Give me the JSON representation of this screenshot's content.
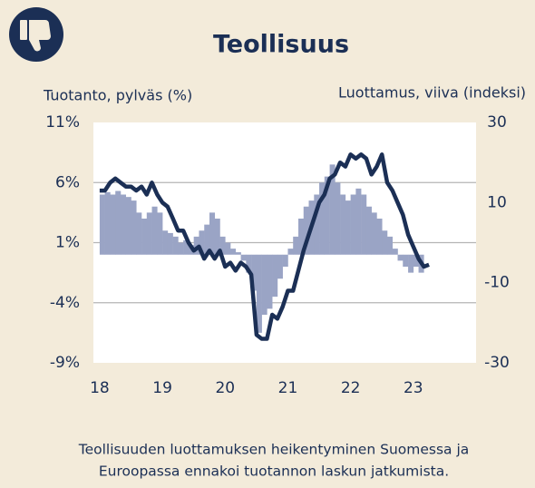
{
  "chart_data": {
    "type": "combo",
    "title": "Teollisuus",
    "y_label": "Tuotanto, pylväs (%)",
    "y2_label": "Luottamus, viiva (indeksi)",
    "caption": [
      "Teollisuuden luottamuksen heikentyminen Suomessa ja",
      "Euroopassa ennakoi tuotannon laskun jatkumista."
    ],
    "xlim": [
      17.9,
      24
    ],
    "xticks": [
      18,
      19,
      20,
      21,
      22,
      23
    ],
    "ylim": [
      -9,
      11
    ],
    "yticks": [
      {
        "value": 11,
        "label": "11%"
      },
      {
        "value": 6,
        "label": "6%"
      },
      {
        "value": 1,
        "label": "1%"
      },
      {
        "value": -4,
        "label": "-4%"
      },
      {
        "value": -9,
        "label": "-9%"
      }
    ],
    "y2lim": [
      -30,
      30
    ],
    "y2ticks": [
      30,
      10,
      -10,
      -30
    ],
    "grid": true,
    "x": [
      18,
      18.083,
      18.167,
      18.25,
      18.333,
      18.417,
      18.5,
      18.583,
      18.667,
      18.75,
      18.833,
      18.917,
      19,
      19.083,
      19.167,
      19.25,
      19.333,
      19.417,
      19.5,
      19.583,
      19.667,
      19.75,
      19.833,
      19.917,
      20,
      20.083,
      20.167,
      20.25,
      20.333,
      20.417,
      20.5,
      20.583,
      20.667,
      20.75,
      20.833,
      20.917,
      21,
      21.083,
      21.167,
      21.25,
      21.333,
      21.417,
      21.5,
      21.583,
      21.667,
      21.75,
      21.833,
      21.917,
      22,
      22.083,
      22.167,
      22.25,
      22.333,
      22.417,
      22.5,
      22.583,
      22.667,
      22.75,
      22.833,
      22.917,
      23,
      23.083,
      23.167,
      23.25
    ],
    "series": [
      {
        "type": "bar",
        "color": "#9aa4c5",
        "values": [
          5.0,
          5.2,
          5.0,
          5.3,
          5.0,
          4.8,
          4.5,
          3.5,
          3.0,
          3.5,
          4.0,
          3.5,
          2.0,
          1.8,
          1.5,
          1.0,
          1.2,
          0.8,
          1.5,
          2.0,
          2.5,
          3.5,
          3.0,
          1.5,
          1.0,
          0.5,
          0.2,
          -0.5,
          -1.5,
          -3.0,
          -6.5,
          -5.0,
          -4.5,
          -3.5,
          -2.0,
          -1.0,
          0.5,
          1.5,
          3.0,
          4.0,
          4.5,
          5.0,
          6.0,
          6.5,
          7.5,
          6.0,
          5.0,
          4.5,
          5.0,
          5.5,
          5.0,
          4.0,
          3.5,
          3.0,
          2.0,
          1.5,
          0.5,
          -0.5,
          -1.0,
          -1.5,
          -1.0,
          -1.5,
          null,
          null
        ]
      },
      {
        "type": "line",
        "axis": "y2",
        "color": "#1b2f55",
        "values": [
          13,
          13,
          15,
          16,
          15,
          14,
          14,
          13,
          14,
          12,
          15,
          12,
          10,
          9,
          6,
          3,
          3,
          0,
          -2,
          -1,
          -4,
          -2,
          -4,
          -2,
          -6,
          -5,
          -7,
          -5,
          -6,
          -8,
          -23,
          -24,
          -24,
          -18,
          -19,
          -16,
          -12,
          -12,
          -7,
          -2,
          2,
          6,
          10,
          12,
          16,
          17,
          20,
          19,
          22,
          21,
          22,
          21,
          17,
          19,
          22,
          15,
          13,
          10,
          7,
          2,
          -1,
          -4,
          -6,
          -5.5
        ]
      }
    ]
  }
}
